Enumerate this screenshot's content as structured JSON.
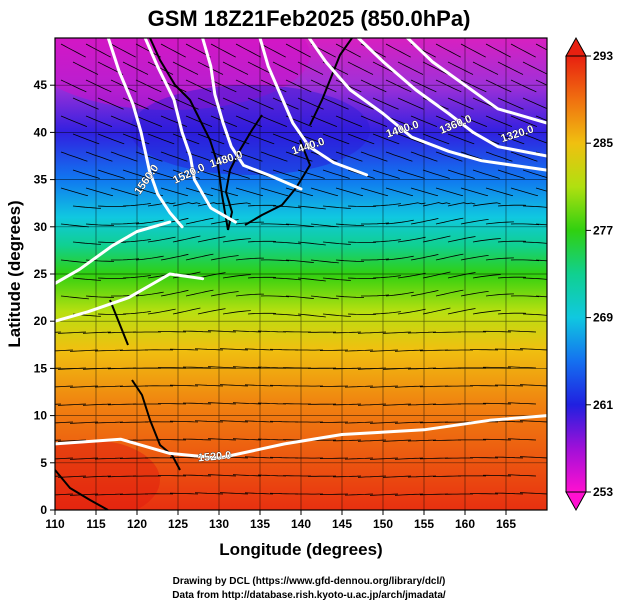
{
  "title": "GSM 18Z21Feb2025 (850.0hPa)",
  "axes": {
    "xlabel": "Longitude (degrees)",
    "ylabel": "Latitude  (degrees)",
    "xlim": [
      110,
      170
    ],
    "ylim": [
      0,
      50
    ],
    "xticks": [
      110,
      115,
      120,
      125,
      130,
      135,
      140,
      145,
      150,
      155,
      160,
      165
    ],
    "yticks": [
      0,
      5,
      10,
      15,
      20,
      25,
      30,
      35,
      40,
      45
    ],
    "grid_x": [
      110,
      115,
      120,
      125,
      130,
      135,
      140,
      145,
      150,
      155,
      160,
      165,
      170
    ],
    "grid_y": [
      0,
      5,
      10,
      15,
      20,
      25,
      30,
      35,
      40,
      45,
      50
    ]
  },
  "colorbar": {
    "range": [
      253,
      293
    ],
    "labels": [
      "293",
      "285",
      "277",
      "269",
      "261",
      "253"
    ],
    "label_values": [
      293,
      285,
      277,
      269,
      261,
      253
    ],
    "colors": [
      "#ff10d0",
      "#a010d8",
      "#2020e0",
      "#1470f0",
      "#10c8e0",
      "#10d090",
      "#30d010",
      "#b0e010",
      "#f0c010",
      "#f07010",
      "#e82010"
    ]
  },
  "contours": [
    {
      "label": "1560.0",
      "label_at": [
        121.5,
        34.8
      ],
      "label_angle": -55,
      "path": [
        [
          116.5,
          50
        ],
        [
          117.8,
          46.5
        ],
        [
          119.5,
          43
        ],
        [
          120.5,
          40
        ],
        [
          121.5,
          36
        ],
        [
          122.5,
          33.5
        ],
        [
          124,
          31.5
        ],
        [
          125.5,
          30
        ]
      ]
    },
    {
      "label": "1520.0",
      "label_at": [
        126.5,
        35.3
      ],
      "label_angle": -25,
      "path": [
        [
          121,
          50
        ],
        [
          122.5,
          47
        ],
        [
          124.5,
          43.5
        ],
        [
          125.5,
          40
        ],
        [
          126.5,
          37.5
        ],
        [
          127,
          35
        ],
        [
          129,
          32
        ],
        [
          132,
          30.5
        ]
      ]
    },
    {
      "label": "1480.0",
      "label_at": [
        131,
        36.8
      ],
      "label_angle": -18,
      "path": [
        [
          128,
          50
        ],
        [
          129,
          47
        ],
        [
          129.5,
          44
        ],
        [
          130.5,
          41
        ],
        [
          131.5,
          38.5
        ],
        [
          133,
          36.5
        ],
        [
          136,
          35.5
        ],
        [
          140,
          34
        ]
      ]
    },
    {
      "label": "1440.0",
      "label_at": [
        141,
        38.2
      ],
      "label_angle": -18,
      "path": [
        [
          135,
          50
        ],
        [
          136,
          47
        ],
        [
          137.5,
          44
        ],
        [
          139,
          41
        ],
        [
          141,
          38.5
        ],
        [
          144,
          36.8
        ],
        [
          148,
          35.5
        ]
      ]
    },
    {
      "label": "1400.0",
      "label_at": [
        152.5,
        40
      ],
      "label_angle": -18,
      "path": [
        [
          141,
          50
        ],
        [
          143,
          47.5
        ],
        [
          146,
          44.5
        ],
        [
          150,
          42
        ],
        [
          153.5,
          39.5
        ],
        [
          158,
          38
        ],
        [
          162,
          37
        ],
        [
          170,
          36
        ]
      ]
    },
    {
      "label": "1360.0",
      "label_at": [
        159,
        40.5
      ],
      "label_angle": -22,
      "path": [
        [
          147,
          50
        ],
        [
          150,
          47.5
        ],
        [
          154,
          44.5
        ],
        [
          158,
          42
        ],
        [
          161,
          40
        ],
        [
          164,
          38.5
        ],
        [
          170,
          37.5
        ]
      ]
    },
    {
      "label": "1320.0",
      "label_at": [
        166.5,
        39.5
      ],
      "label_angle": -18,
      "path": [
        [
          153,
          50
        ],
        [
          156,
          47.5
        ],
        [
          160,
          45
        ],
        [
          164,
          42.5
        ],
        [
          170,
          41
        ]
      ]
    },
    {
      "label": "1520.0",
      "label_at": [
        129.5,
        5.3
      ],
      "label_angle": -5,
      "path": [
        [
          110,
          7
        ],
        [
          118,
          7.5
        ],
        [
          124,
          6
        ],
        [
          130,
          5.5
        ],
        [
          138,
          7
        ],
        [
          145,
          8
        ],
        [
          155,
          8.5
        ],
        [
          163,
          9.5
        ],
        [
          170,
          10
        ]
      ]
    },
    {
      "label": "",
      "label_at": [
        0,
        0
      ],
      "label_angle": 0,
      "path": [
        [
          110,
          24
        ],
        [
          113,
          25.5
        ],
        [
          117,
          28
        ],
        [
          120,
          29.5
        ],
        [
          124,
          30.5
        ]
      ]
    },
    {
      "label": "",
      "label_at": [
        0,
        0
      ],
      "label_angle": 0,
      "path": [
        [
          110,
          20
        ],
        [
          114,
          21
        ],
        [
          119,
          22.5
        ],
        [
          124,
          25
        ],
        [
          128,
          24.5
        ]
      ]
    }
  ],
  "credits": {
    "line1": "Drawing by DCL (https://www.gfd-dennou.org/library/dcl/)",
    "line2": "Data from http://database.rish.kyoto-u.ac.jp/arch/jmadata/"
  }
}
